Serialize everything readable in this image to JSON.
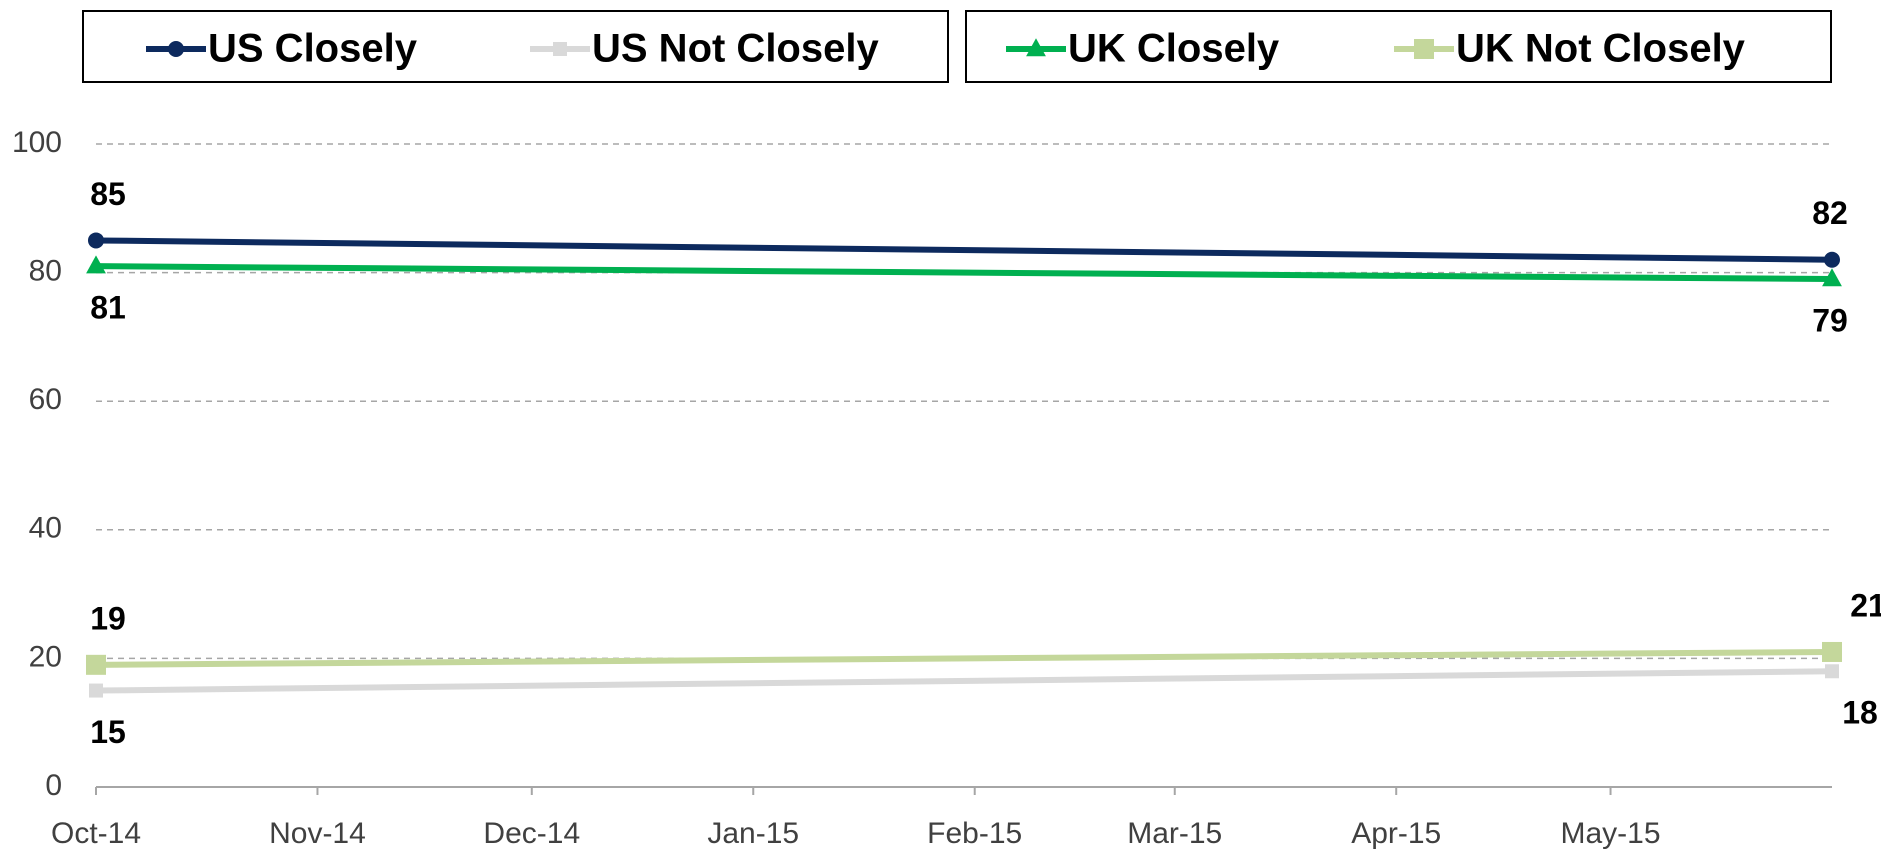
{
  "chart_data": {
    "type": "line",
    "x": [
      "2014-10",
      "2015-06"
    ],
    "xlim": [
      "2014-10",
      "2015-06"
    ],
    "xticks": [
      {
        "value": "2014-10",
        "label": "Oct-14"
      },
      {
        "value": "2014-11",
        "label": "Nov-14"
      },
      {
        "value": "2014-12",
        "label": "Dec-14"
      },
      {
        "value": "2015-01",
        "label": "Jan-15"
      },
      {
        "value": "2015-02",
        "label": "Feb-15"
      },
      {
        "value": "2015-03",
        "label": "Mar-15"
      },
      {
        "value": "2015-04",
        "label": "Apr-15"
      },
      {
        "value": "2015-05",
        "label": "May-15"
      }
    ],
    "ylim": [
      0,
      100
    ],
    "yticks": [
      0,
      20,
      40,
      60,
      80,
      100
    ],
    "grid": true,
    "series": [
      {
        "name": "US Closely",
        "color": "#0d2a5e",
        "marker": "circle",
        "values": [
          85,
          82
        ]
      },
      {
        "name": "US Not Closely",
        "color": "#d9d9d9",
        "marker": "square",
        "values": [
          15,
          18
        ]
      },
      {
        "name": "UK Closely",
        "color": "#00b050",
        "marker": "triangle",
        "values": [
          81,
          79
        ]
      },
      {
        "name": "UK Not Closely",
        "color": "#c4d79b",
        "marker": "square",
        "values": [
          19,
          21
        ]
      }
    ]
  }
}
